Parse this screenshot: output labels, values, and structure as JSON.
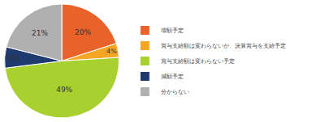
{
  "chart_data": {
    "type": "pie",
    "categories": [
      "増額予定",
      "賞与支給額は変わらないが、決算賞与を支給予定",
      "賞与支給額は変わらない予定",
      "減額予定",
      "分からない"
    ],
    "values": [
      20,
      4,
      49,
      6,
      21
    ],
    "value_labels": [
      "20%",
      "4%",
      "49%",
      "6%",
      "21%"
    ],
    "colors": [
      "#e8622a",
      "#f5a623",
      "#a8d130",
      "#1e3a6e",
      "#b0b0b0"
    ],
    "data_labels": true,
    "legend": "right"
  }
}
